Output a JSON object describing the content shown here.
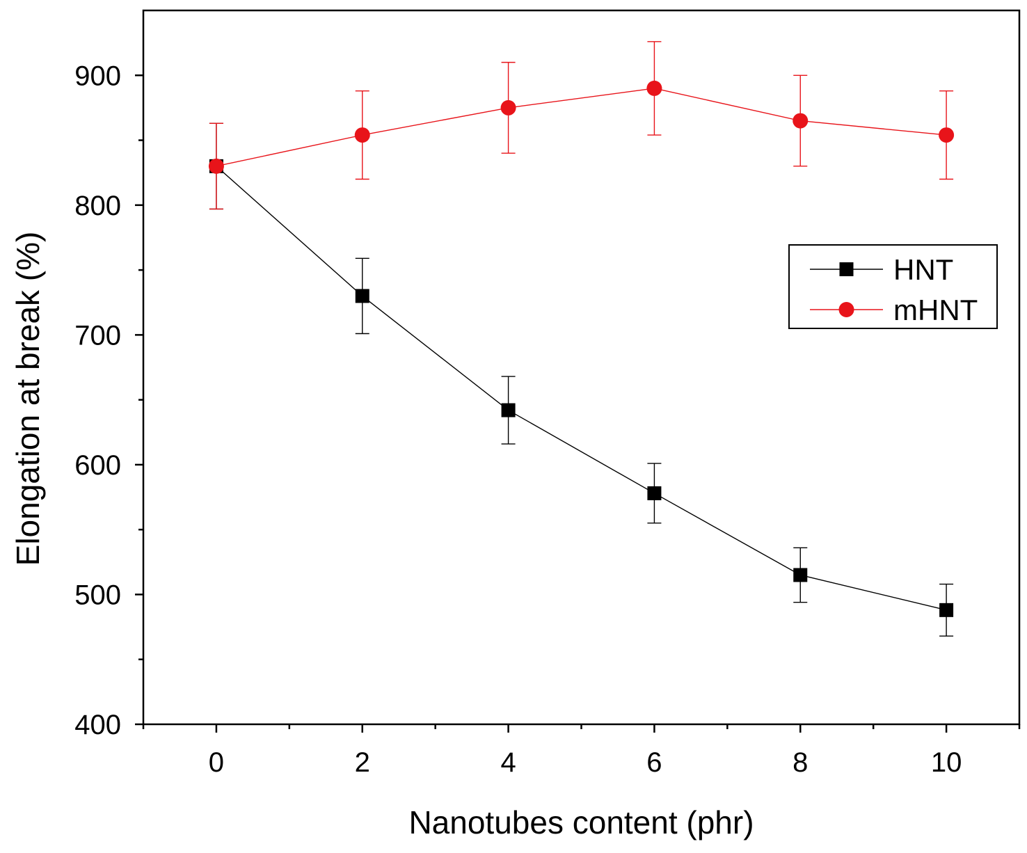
{
  "chart_data": {
    "type": "line",
    "xlabel": "Nanotubes content (phr)",
    "ylabel": "Elongation at break (%)",
    "xlim": [
      -1,
      11
    ],
    "ylim": [
      400,
      950
    ],
    "x_ticks": [
      0,
      2,
      4,
      6,
      8,
      10
    ],
    "x_minor_ticks": [
      -1,
      1,
      3,
      5,
      7,
      9,
      11
    ],
    "y_ticks": [
      400,
      500,
      600,
      700,
      800,
      900
    ],
    "y_minor_ticks": [
      450,
      550,
      650,
      750,
      850
    ],
    "legend_position": "right",
    "series": [
      {
        "name": "HNT",
        "marker": "square",
        "color": "#000000",
        "x": [
          0,
          2,
          4,
          6,
          8,
          10
        ],
        "y": [
          830,
          730,
          642,
          578,
          515,
          488
        ],
        "error": [
          33,
          29,
          26,
          23,
          21,
          20
        ]
      },
      {
        "name": "mHNT",
        "marker": "circle",
        "color": "#e8141a",
        "x": [
          0,
          2,
          4,
          6,
          8,
          10
        ],
        "y": [
          830,
          854,
          875,
          890,
          865,
          854
        ],
        "error": [
          33,
          34,
          35,
          36,
          35,
          34
        ]
      }
    ]
  }
}
